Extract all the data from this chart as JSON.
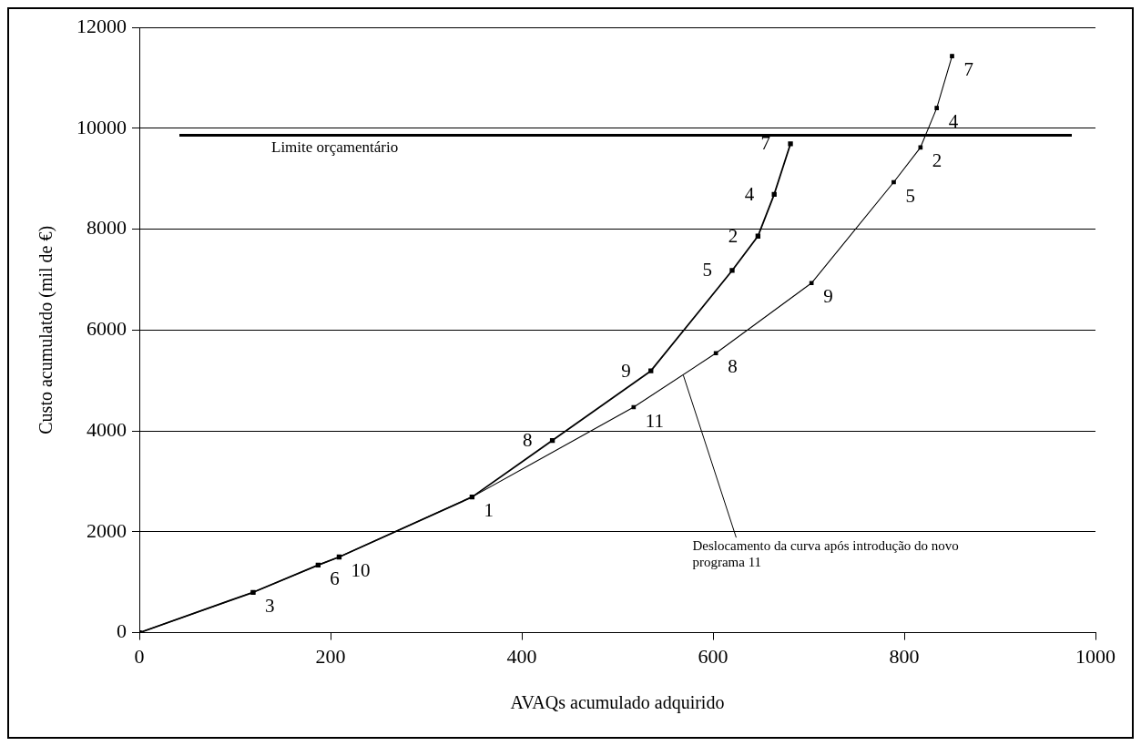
{
  "chart_data": {
    "type": "line",
    "xlabel": "AVAQs acumulado adquirido",
    "ylabel": "Custo acumulatdo (mil de €)",
    "xlim": [
      0,
      1000
    ],
    "xticks": [
      0,
      200,
      400,
      600,
      800,
      1000
    ],
    "ylim": [
      0,
      12000
    ],
    "yticks": [
      0,
      2000,
      4000,
      6000,
      8000,
      10000,
      12000
    ],
    "grid": "y",
    "legend": false,
    "marker": "square",
    "line_style": "solid",
    "series": [
      {
        "color": "#000000",
        "x": [
          0,
          119,
          187,
          209,
          348,
          432,
          535,
          620,
          647,
          664,
          681
        ],
        "values": [
          0,
          800,
          1340,
          1500,
          2690,
          3810,
          5190,
          7180,
          7860,
          8690,
          9690
        ]
      },
      {
        "color": "#000000",
        "x": [
          0,
          119,
          187,
          209,
          348,
          517,
          603,
          703,
          789,
          817,
          834,
          850
        ],
        "values": [
          0,
          800,
          1340,
          1500,
          2690,
          4470,
          5540,
          6930,
          8930,
          9620,
          10400,
          11430
        ]
      }
    ],
    "ref_lines": [
      {
        "axis": "y",
        "value": 9860,
        "label": "Limite orçamentário",
        "color": "#000000"
      }
    ],
    "annotations": [
      {
        "text": "3",
        "x": 119,
        "y": 800
      },
      {
        "text": "6",
        "x": 187,
        "y": 1340
      },
      {
        "text": "10",
        "x": 209,
        "y": 1500
      },
      {
        "text": "1",
        "x": 348,
        "y": 2690
      },
      {
        "text": "8",
        "x": 432,
        "y": 3810
      },
      {
        "text": "9",
        "x": 535,
        "y": 5190
      },
      {
        "text": "5",
        "x": 620,
        "y": 7180
      },
      {
        "text": "2",
        "x": 647,
        "y": 7860
      },
      {
        "text": "4",
        "x": 664,
        "y": 8690
      },
      {
        "text": "7",
        "x": 681,
        "y": 9690
      },
      {
        "text": "11",
        "x": 517,
        "y": 4470
      },
      {
        "text": "8",
        "x": 603,
        "y": 5540
      },
      {
        "text": "9",
        "x": 703,
        "y": 6930
      },
      {
        "text": "5",
        "x": 789,
        "y": 8930
      },
      {
        "text": "2",
        "x": 817,
        "y": 9620
      },
      {
        "text": "4",
        "x": 834,
        "y": 10400
      },
      {
        "text": "7",
        "x": 850,
        "y": 11430
      },
      {
        "text": "Deslocamento da curva após introdução do novo programa 11",
        "x": 569,
        "y": 5100
      }
    ]
  }
}
